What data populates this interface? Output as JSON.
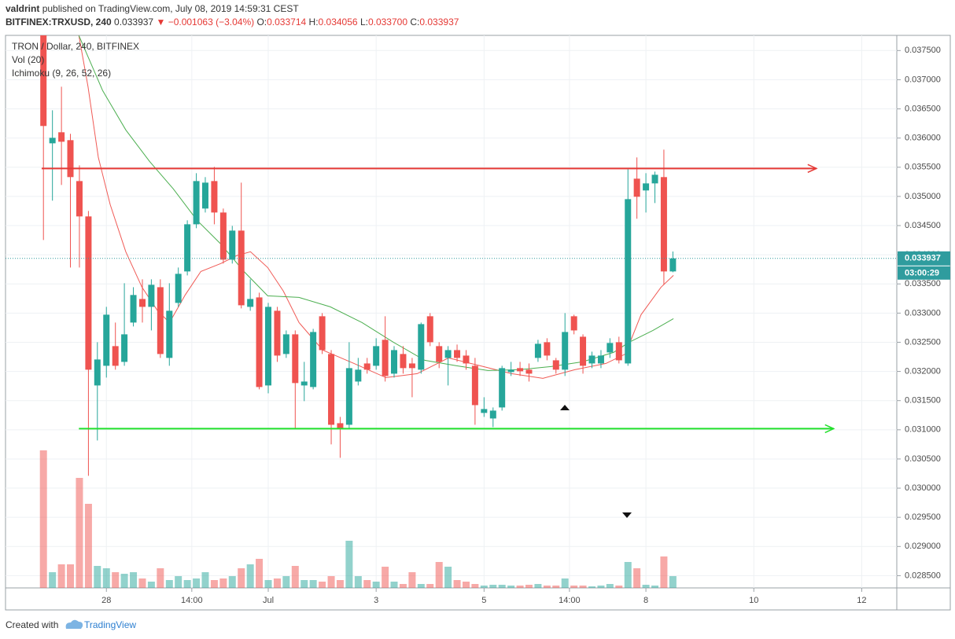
{
  "header": {
    "author": "valdrint",
    "published": "published on TradingView.com, July 08, 2019 14:59:31 CEST",
    "symbol": "BITFINEX:TRXUSD, 240",
    "last": "0.033937",
    "change": "−0.001063 (−3.04%)",
    "ohlc": [
      {
        "label": "O:",
        "value": "0.033714"
      },
      {
        "label": "H:",
        "value": "0.034056"
      },
      {
        "label": "L:",
        "value": "0.033700"
      },
      {
        "label": "C:",
        "value": "0.033937"
      }
    ]
  },
  "footer": {
    "created": "Created with",
    "brand": "TradingView"
  },
  "chart_data": {
    "type": "candlestick",
    "legend": [
      "TRON / Dollar, 240, BITFINEX",
      "Vol (20)",
      "Ichimoku (9, 26, 52, 26)"
    ],
    "up_color": "#26a69a",
    "down_color": "#ef5350",
    "xlim": [
      26.13,
      42.65
    ],
    "xticks": [
      28,
      {
        "value": 29.583,
        "label": "14:00"
      },
      {
        "value": 31,
        "label": "Jul"
      },
      {
        "value": 33,
        "label": "3"
      },
      {
        "value": 35,
        "label": "5"
      },
      {
        "value": 36.583,
        "label": "14:00"
      },
      {
        "value": 38,
        "label": "8"
      },
      {
        "value": 40,
        "label": "10"
      },
      {
        "value": 42,
        "label": "12"
      }
    ],
    "ylim": [
      0.02829,
      0.03776
    ],
    "yticks": [
      {
        "value": 0.0285,
        "label": "0.028500"
      },
      {
        "value": 0.029,
        "label": "0.029000"
      },
      {
        "value": 0.0295,
        "label": "0.029500"
      },
      {
        "value": 0.03,
        "label": "0.030000"
      },
      {
        "value": 0.0305,
        "label": "0.030500"
      },
      {
        "value": 0.031,
        "label": "0.031000"
      },
      {
        "value": 0.0315,
        "label": "0.031500"
      },
      {
        "value": 0.032,
        "label": "0.032000"
      },
      {
        "value": 0.0325,
        "label": "0.032500"
      },
      {
        "value": 0.033,
        "label": "0.033000"
      },
      {
        "value": 0.0335,
        "label": "0.033500"
      },
      {
        "value": 0.034,
        "label": "0.034000"
      },
      {
        "value": 0.0345,
        "label": "0.034500"
      },
      {
        "value": 0.035,
        "label": "0.035000"
      },
      {
        "value": 0.0355,
        "label": "0.035500"
      },
      {
        "value": 0.036,
        "label": "0.036000"
      },
      {
        "value": 0.0365,
        "label": "0.036500"
      },
      {
        "value": 0.037,
        "label": "0.037000"
      },
      {
        "value": 0.0375,
        "label": "0.037500"
      }
    ],
    "grid": true,
    "x": [
      26.833,
      27,
      27.167,
      27.333,
      27.5,
      27.667,
      27.833,
      28,
      28.167,
      28.333,
      28.5,
      28.667,
      28.833,
      29,
      29.167,
      29.333,
      29.5,
      29.667,
      29.833,
      30,
      30.167,
      30.333,
      30.5,
      30.667,
      30.833,
      31,
      31.167,
      31.333,
      31.5,
      31.667,
      31.833,
      32,
      32.167,
      32.333,
      32.5,
      32.667,
      32.833,
      33,
      33.167,
      33.333,
      33.5,
      33.667,
      33.833,
      34,
      34.167,
      34.333,
      34.5,
      34.667,
      34.833,
      35,
      35.167,
      35.333,
      35.5,
      35.667,
      35.833,
      36,
      36.167,
      36.333,
      36.5,
      36.667,
      36.833,
      37,
      37.167,
      37.333,
      37.5,
      37.667,
      37.833,
      38,
      38.167,
      38.333,
      38.5
    ],
    "open": [
      0.0378,
      0.03591,
      0.036099,
      0.035964,
      0.035263,
      0.034657,
      0.03176,
      0.032097,
      0.032434,
      0.032164,
      0.032838,
      0.033242,
      0.033107,
      0.033444,
      0.032232,
      0.033175,
      0.033714,
      0.034522,
      0.034792,
      0.035263,
      0.034724,
      0.033916,
      0.034414,
      0.033107,
      0.033269,
      0.03176,
      0.03304,
      0.032299,
      0.032636,
      0.03176,
      0.031733,
      0.032946,
      0.032299,
      0.031113,
      0.031086,
      0.031827,
      0.032137,
      0.032097,
      0.032542,
      0.031962,
      0.032299,
      0.032137,
      0.03203,
      0.032946,
      0.032434,
      0.032232,
      0.032366,
      0.032272,
      0.032097,
      0.031289,
      0.031194,
      0.031383,
      0.031989,
      0.032057,
      0.03203,
      0.032232,
      0.032501,
      0.032191,
      0.03203,
      0.032946,
      0.032595,
      0.032137,
      0.032137,
      0.032326,
      0.032501,
      0.032137,
      0.035304,
      0.035102,
      0.035223,
      0.035331,
      0.033714
    ],
    "high": [
      0.038,
      0.036476,
      0.03688,
      0.036072,
      0.035533,
      0.034751,
      0.032501,
      0.033107,
      0.032838,
      0.033512,
      0.033444,
      0.033579,
      0.033579,
      0.033579,
      0.033512,
      0.033781,
      0.03459,
      0.035398,
      0.035331,
      0.035506,
      0.034792,
      0.034495,
      0.035236,
      0.033579,
      0.03335,
      0.033175,
      0.033107,
      0.032703,
      0.032703,
      0.032164,
      0.03273,
      0.033,
      0.032366,
      0.031221,
      0.032501,
      0.032232,
      0.032232,
      0.032569,
      0.032946,
      0.032434,
      0.032434,
      0.032232,
      0.032838,
      0.033,
      0.032501,
      0.032434,
      0.032461,
      0.032366,
      0.032232,
      0.031558,
      0.031383,
      0.032097,
      0.032164,
      0.032164,
      0.032137,
      0.032542,
      0.032569,
      0.032232,
      0.033,
      0.032973,
      0.032636,
      0.032339,
      0.032366,
      0.032569,
      0.032595,
      0.035465,
      0.035668,
      0.035398,
      0.035425,
      0.035802,
      0.034056
    ],
    "low": [
      0.034253,
      0.034927,
      0.035196,
      0.033781,
      0.033781,
      0.030211,
      0.030817,
      0.031895,
      0.03203,
      0.032097,
      0.032771,
      0.032838,
      0.032703,
      0.032232,
      0.032097,
      0.033107,
      0.033646,
      0.034455,
      0.034724,
      0.034522,
      0.033849,
      0.033849,
      0.033081,
      0.03304,
      0.031693,
      0.031625,
      0.032164,
      0.032232,
      0.031019,
      0.031491,
      0.031693,
      0.032299,
      0.03075,
      0.03052,
      0.031019,
      0.03176,
      0.031962,
      0.03203,
      0.031827,
      0.031895,
      0.031962,
      0.031558,
      0.031962,
      0.032434,
      0.032057,
      0.03176,
      0.032164,
      0.03203,
      0.031086,
      0.031221,
      0.031046,
      0.031329,
      0.031922,
      0.031922,
      0.031827,
      0.032164,
      0.032191,
      0.031962,
      0.031922,
      0.032636,
      0.031962,
      0.032057,
      0.032057,
      0.032232,
      0.032137,
      0.032097,
      0.034617,
      0.034724,
      0.034886,
      0.033485,
      0.0337
    ],
    "close": [
      0.036207,
      0.036004,
      0.035937,
      0.035331,
      0.034657,
      0.03203,
      0.032205,
      0.032973,
      0.032097,
      0.032636,
      0.03331,
      0.033107,
      0.033485,
      0.032299,
      0.03304,
      0.033673,
      0.034522,
      0.035263,
      0.035236,
      0.034724,
      0.033916,
      0.034414,
      0.033134,
      0.033242,
      0.031733,
      0.033107,
      0.032272,
      0.032636,
      0.031801,
      0.031827,
      0.032676,
      0.032366,
      0.031086,
      0.031019,
      0.032057,
      0.03203,
      0.03203,
      0.032434,
      0.031922,
      0.032366,
      0.032057,
      0.032057,
      0.032811,
      0.032501,
      0.032164,
      0.032366,
      0.032232,
      0.032137,
      0.031423,
      0.031356,
      0.031329,
      0.032057,
      0.03203,
      0.032003,
      0.031962,
      0.032474,
      0.032272,
      0.03203,
      0.032676,
      0.032703,
      0.032097,
      0.032272,
      0.032272,
      0.032488,
      0.032191,
      0.034953,
      0.034994,
      0.035223,
      0.035371,
      0.033714,
      0.033937
    ],
    "volume": [
      175,
      20,
      30,
      30,
      140,
      107,
      28,
      25,
      20,
      18,
      20,
      12,
      8,
      25,
      10,
      15,
      10,
      12,
      20,
      10,
      12,
      15,
      25,
      30,
      37,
      10,
      12,
      15,
      28,
      10,
      10,
      8,
      15,
      10,
      60,
      15,
      10,
      8,
      27,
      8,
      5,
      20,
      5,
      5,
      33,
      27,
      10,
      8,
      5,
      3,
      4,
      4,
      3,
      3,
      4,
      5,
      3,
      3,
      12,
      3,
      3,
      2,
      3,
      5,
      3,
      33,
      25,
      4,
      3,
      40,
      15
    ],
    "lines": [
      {
        "color": "#f05a55",
        "x": [
          27.49,
          27.66,
          27.85,
          28.07,
          28.36,
          28.66,
          28.95,
          29.17,
          29.46,
          29.75,
          30.12,
          30.41,
          30.67,
          30.99,
          31.28,
          31.57,
          32.01,
          32.59,
          33.18,
          33.76,
          34.34,
          34.93,
          35.51,
          36.09,
          36.68,
          37.26,
          37.62,
          37.91,
          38.28,
          38.51
        ],
        "values": [
          0.037756,
          0.03688,
          0.035668,
          0.034859,
          0.034051,
          0.033444,
          0.03304,
          0.032838,
          0.03331,
          0.033714,
          0.033849,
          0.033983,
          0.034051,
          0.033781,
          0.033377,
          0.032838,
          0.032366,
          0.032137,
          0.031895,
          0.031962,
          0.032232,
          0.032097,
          0.031962,
          0.031881,
          0.03203,
          0.032137,
          0.032299,
          0.032973,
          0.033444,
          0.033646
        ]
      },
      {
        "color": "#4caf50",
        "x": [
          27.49,
          27.93,
          28.36,
          28.8,
          29.24,
          29.68,
          30.12,
          30.55,
          30.99,
          31.57,
          32.15,
          32.74,
          33.32,
          33.9,
          34.49,
          35.07,
          35.65,
          36.24,
          36.82,
          37.4,
          37.69,
          38.13,
          38.51
        ],
        "values": [
          0.037756,
          0.036813,
          0.036139,
          0.0356,
          0.035129,
          0.03459,
          0.034185,
          0.033714,
          0.033296,
          0.033269,
          0.033107,
          0.032838,
          0.032501,
          0.032191,
          0.032097,
          0.032016,
          0.03203,
          0.032083,
          0.032164,
          0.032326,
          0.032501,
          0.032703,
          0.032905
        ]
      }
    ],
    "drawings": [
      {
        "color": "#e53935",
        "price": 0.035479,
        "x": [
          26.8,
          41.16
        ]
      },
      {
        "color": "#22e02c",
        "price": 0.031019,
        "x": [
          27.49,
          41.48
        ]
      }
    ],
    "last_price": {
      "value": 0.033937,
      "label": "0.033937",
      "color": "#2f9c9e"
    },
    "countdown": "03:00:29"
  }
}
